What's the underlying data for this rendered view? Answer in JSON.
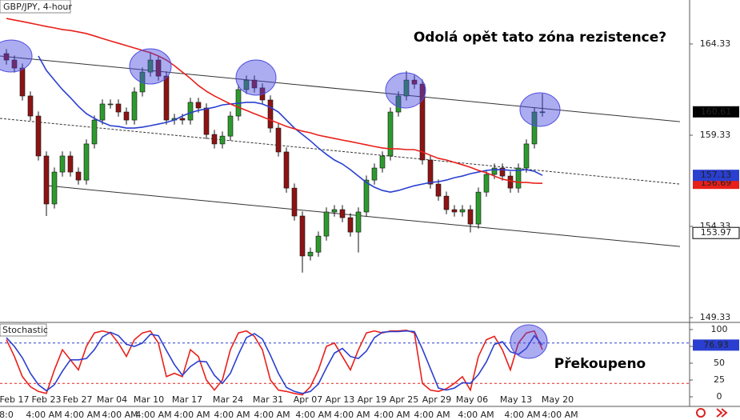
{
  "chart_data": [
    {
      "type": "candlestick",
      "title": "GBP/JPY, 4-hour",
      "annotation": "Odolá opět tato zóna rezistence?",
      "ylim": [
        149.2,
        166.74
      ],
      "yticks": [
        164.33,
        159.33,
        154.33,
        149.33
      ],
      "up_color": "#2e9a2e",
      "down_color": "#8e1414",
      "open": [
        163.8,
        163.45,
        163.01,
        161.48,
        160.38,
        158.19,
        155.56,
        157.31,
        158.19,
        157.31,
        156.87,
        158.85,
        160.16,
        161.04,
        161.04,
        160.6,
        160.16,
        161.7,
        162.79,
        163.45,
        162.57,
        160.16,
        160.25,
        160.16,
        161.13,
        160.82,
        159.37,
        158.85,
        159.28,
        160.38,
        161.83,
        162.35,
        161.92,
        161.26,
        159.72,
        158.41,
        156.43,
        154.9,
        152.71,
        152.92,
        153.8,
        155.12,
        155.25,
        154.81,
        154.02,
        155.12,
        156.87,
        157.53,
        158.19,
        160.6,
        161.48,
        162.35,
        162.13,
        157.97,
        156.65,
        155.99,
        155.25,
        155.12,
        155.25,
        154.46,
        156.21,
        157.18,
        157.53,
        157.09,
        156.43,
        157.53,
        158.85,
        160.6
      ],
      "high": [
        164.05,
        163.7,
        163.26,
        161.73,
        160.63,
        158.44,
        157.56,
        158.44,
        158.44,
        157.56,
        159.1,
        160.41,
        161.29,
        161.29,
        161.29,
        160.85,
        161.95,
        163.04,
        163.9,
        163.7,
        162.82,
        160.5,
        160.5,
        161.38,
        161.38,
        161.07,
        159.62,
        159.53,
        160.63,
        162.08,
        162.6,
        162.6,
        162.17,
        161.51,
        159.97,
        158.66,
        156.68,
        155.15,
        153.17,
        154.05,
        155.37,
        155.5,
        155.5,
        155.06,
        155.37,
        157.12,
        157.78,
        158.44,
        160.85,
        161.73,
        162.85,
        162.6,
        162.38,
        158.22,
        156.9,
        156.24,
        155.5,
        155.5,
        155.5,
        156.46,
        157.43,
        157.78,
        157.78,
        157.34,
        157.78,
        159.1,
        160.85,
        161.6
      ],
      "low": [
        163.2,
        162.76,
        161.23,
        160.13,
        157.94,
        154.9,
        155.31,
        157.06,
        157.06,
        156.62,
        156.62,
        158.6,
        159.91,
        160.79,
        160.35,
        159.91,
        159.91,
        161.45,
        162.54,
        162.32,
        159.91,
        159.91,
        159.91,
        159.91,
        160.57,
        159.12,
        158.6,
        158.6,
        159.03,
        160.13,
        161.58,
        161.67,
        161.01,
        159.47,
        158.16,
        156.18,
        154.65,
        151.8,
        152.46,
        152.67,
        153.55,
        154.87,
        154.56,
        153.77,
        152.9,
        154.87,
        156.62,
        157.28,
        157.94,
        160.35,
        161.23,
        161.88,
        157.72,
        156.4,
        155.74,
        155.0,
        154.87,
        154.87,
        154.0,
        154.21,
        155.96,
        156.93,
        156.84,
        156.18,
        156.18,
        157.28,
        158.6,
        160.35
      ],
      "close": [
        163.45,
        163.01,
        161.48,
        160.38,
        158.19,
        155.56,
        157.31,
        158.19,
        157.31,
        156.87,
        158.85,
        160.16,
        161.04,
        161.04,
        160.6,
        160.16,
        161.7,
        162.79,
        163.45,
        162.57,
        160.16,
        160.25,
        160.16,
        161.13,
        160.82,
        159.37,
        158.85,
        159.28,
        160.38,
        161.83,
        162.35,
        161.92,
        161.26,
        159.72,
        158.41,
        156.43,
        154.9,
        152.71,
        152.92,
        153.8,
        155.12,
        155.25,
        154.81,
        154.02,
        155.12,
        156.87,
        157.53,
        158.19,
        160.6,
        161.48,
        162.35,
        162.13,
        157.97,
        156.65,
        155.99,
        155.25,
        155.12,
        155.25,
        154.46,
        156.21,
        157.18,
        157.53,
        157.09,
        156.43,
        157.53,
        158.85,
        160.6,
        160.61
      ],
      "series": [
        {
          "color": "#2a3fd0",
          "values": [
            null,
            null,
            null,
            null,
            163.67,
            162.88,
            162.35,
            161.83,
            161.39,
            160.91,
            160.51,
            160.25,
            160.03,
            159.85,
            159.81,
            159.72,
            159.72,
            159.77,
            159.85,
            159.94,
            160.03,
            160.16,
            160.38,
            160.56,
            160.69,
            160.77,
            160.86,
            160.99,
            161.04,
            161.08,
            161.13,
            161.13,
            161.04,
            160.86,
            160.6,
            160.16,
            159.72,
            159.37,
            159.02,
            158.63,
            158.28,
            157.97,
            157.75,
            157.44,
            157.09,
            156.74,
            156.48,
            156.3,
            156.21,
            156.3,
            156.43,
            156.56,
            156.65,
            156.74,
            156.78,
            156.87,
            157.0,
            157.09,
            157.22,
            157.31,
            157.4,
            157.44,
            157.44,
            157.4,
            157.4,
            157.44,
            157.35,
            157.13
          ]
        },
        {
          "color": "#e8201a",
          "values": [
            165.73,
            165.64,
            165.56,
            165.47,
            165.38,
            165.29,
            165.21,
            165.12,
            165.07,
            164.99,
            164.9,
            164.77,
            164.63,
            164.5,
            164.37,
            164.24,
            164.11,
            163.98,
            163.85,
            163.67,
            163.45,
            163.14,
            162.79,
            162.44,
            162.05,
            161.74,
            161.48,
            161.26,
            161.04,
            160.86,
            160.69,
            160.51,
            160.34,
            160.16,
            159.99,
            159.81,
            159.68,
            159.55,
            159.46,
            159.33,
            159.24,
            159.15,
            159.06,
            158.98,
            158.89,
            158.8,
            158.71,
            158.63,
            158.58,
            158.58,
            158.54,
            158.54,
            158.41,
            158.23,
            158.06,
            157.97,
            157.84,
            157.71,
            157.57,
            157.4,
            157.27,
            157.09,
            156.92,
            156.83,
            156.74,
            156.74,
            156.7,
            156.69
          ]
        }
      ],
      "trendlines": [
        {
          "from": [
            -0.8,
            163.67
          ],
          "to": [
            84.2,
            160.07
          ],
          "dashed": false
        },
        {
          "from": [
            -0.8,
            160.25
          ],
          "to": [
            84.2,
            156.65
          ],
          "dashed": true
        },
        {
          "from": [
            5.2,
            156.56
          ],
          "to": [
            84.2,
            153.23
          ],
          "dashed": false
        }
      ],
      "marker": {
        "value": 153.97
      },
      "x_labels": [
        "Feb 17",
        "Feb 23",
        "Feb 27",
        "Mar 04",
        "Mar 10",
        "Mar 17",
        "Mar 24",
        "Mar 31",
        "Apr 07",
        "Apr 13",
        "Apr 19",
        "Apr 25",
        "Apr 29",
        "May 06",
        "May 13",
        "May 20"
      ],
      "time_labels": [
        "8:0",
        "4:00 AM",
        "4:00 AM",
        "4:00 AM",
        "4:00 AM",
        "4:00 AM",
        "4:00 AM",
        "4:00 AM",
        "4:00 AM",
        "4:00 AM",
        "4:00 AM",
        "4:00 AM",
        "4:00 AM",
        "4:00 AM",
        "4:00 AM"
      ]
    },
    {
      "type": "line",
      "title": "Stochastic",
      "annotation": "Překoupeno",
      "ylim": [
        -10.7,
        108.3
      ],
      "yticks": [
        100,
        75,
        50,
        25,
        0
      ],
      "levels": [
        {
          "value": 80,
          "color": "#2a3fd0"
        },
        {
          "value": 20,
          "color": "#e8201a"
        }
      ],
      "series": [
        {
          "color": "#e8201a",
          "values": [
            85,
            60,
            30,
            15,
            8,
            5,
            40,
            70,
            55,
            40,
            75,
            95,
            98,
            95,
            80,
            60,
            85,
            95,
            98,
            80,
            30,
            35,
            30,
            70,
            60,
            25,
            10,
            25,
            70,
            95,
            98,
            90,
            70,
            25,
            10,
            8,
            5,
            3,
            15,
            40,
            75,
            80,
            60,
            40,
            70,
            95,
            98,
            95,
            98,
            98,
            99,
            95,
            20,
            10,
            8,
            12,
            20,
            30,
            10,
            60,
            85,
            90,
            70,
            40,
            80,
            95,
            98,
            70
          ]
        },
        {
          "color": "#2a3fd0",
          "values": [
            88,
            75,
            58,
            35,
            18,
            9,
            18,
            38,
            55,
            55,
            57,
            70,
            89,
            96,
            91,
            78,
            75,
            80,
            93,
            91,
            69,
            48,
            32,
            45,
            53,
            52,
            32,
            20,
            35,
            63,
            88,
            94,
            86,
            62,
            35,
            14,
            8,
            5,
            8,
            19,
            43,
            65,
            72,
            60,
            57,
            68,
            88,
            96,
            97,
            97,
            98,
            97,
            71,
            42,
            13,
            10,
            13,
            21,
            20,
            33,
            52,
            78,
            82,
            67,
            63,
            72,
            91,
            76.93
          ]
        }
      ]
    }
  ]
}
